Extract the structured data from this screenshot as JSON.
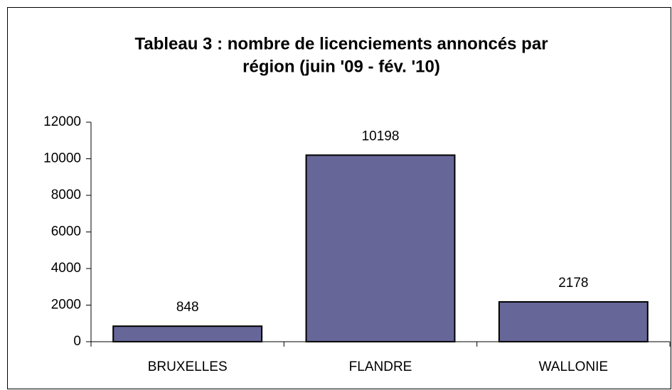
{
  "chart_data": {
    "type": "bar",
    "title": [
      "Tableau 3 : nombre de licenciements annoncés par",
      "région (juin '09 - fév. '10)"
    ],
    "categories": [
      "BRUXELLES",
      "FLANDRE",
      "WALLONIE"
    ],
    "values": [
      848,
      10198,
      2178
    ],
    "color": "#666699",
    "ylim": [
      0,
      12000
    ],
    "yticks": [
      0,
      2000,
      4000,
      6000,
      8000,
      10000,
      12000
    ],
    "grid": false
  }
}
